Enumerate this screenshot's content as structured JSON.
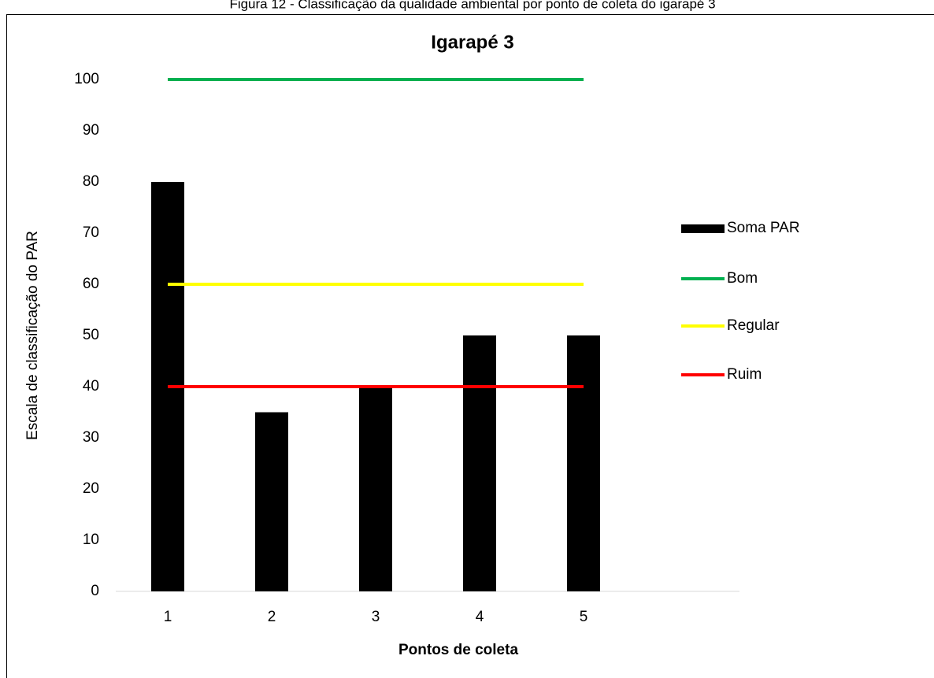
{
  "chart_data": {
    "type": "bar",
    "caption": "Figura 12 - Classificação da qualidade ambiental por ponto de coleta do igarapé 3",
    "title": "Igarapé 3",
    "x_label": "Pontos de coleta",
    "y_label": "Escala de classificação do PAR",
    "categories": [
      "1",
      "2",
      "3",
      "4",
      "5",
      null
    ],
    "series": [
      {
        "name": "Soma PAR",
        "type": "bar",
        "color": "#000000",
        "values": [
          80,
          35,
          40,
          50,
          50,
          null
        ]
      },
      {
        "name": "Bom",
        "type": "line",
        "color": "#00b050",
        "values": [
          100,
          100,
          100,
          100,
          100,
          null
        ]
      },
      {
        "name": "Regular",
        "type": "line",
        "color": "#ffff00",
        "values": [
          60,
          60,
          60,
          60,
          60,
          null
        ]
      },
      {
        "name": "Ruim",
        "type": "line",
        "color": "#ff0000",
        "values": [
          40,
          40,
          40,
          40,
          40,
          null
        ]
      }
    ],
    "ylim": [
      0,
      100
    ],
    "yticks": [
      0,
      10,
      20,
      30,
      40,
      50,
      60,
      70,
      80,
      90,
      100
    ],
    "grid": false,
    "legend": "right"
  }
}
